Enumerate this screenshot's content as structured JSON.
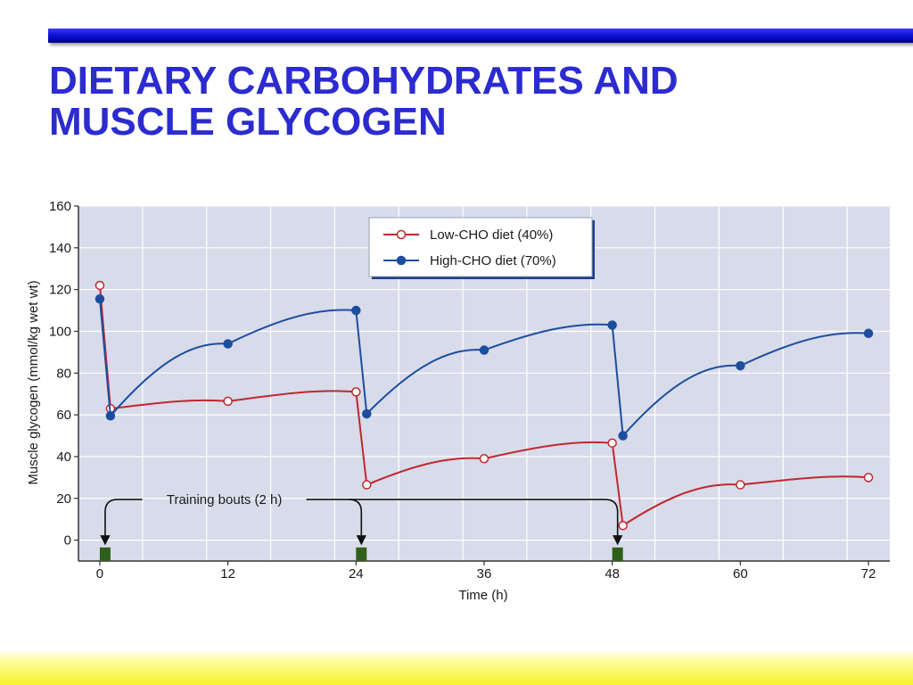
{
  "slide": {
    "title_line1": "DIETARY CARBOHYDRATES AND",
    "title_line2": "MUSCLE GLYCOGEN",
    "title_color": "#2b2bd0",
    "bar_color": "#1010d8",
    "band_color": "#f6f22a"
  },
  "chart_data": {
    "type": "line",
    "xlabel": "Time (h)",
    "ylabel": "Muscle glycogen (mmol/kg wet wt)",
    "xlim": [
      -2,
      74
    ],
    "ylim": [
      -10,
      160
    ],
    "xticks": [
      0,
      12,
      24,
      36,
      48,
      60,
      72
    ],
    "yticks": [
      0,
      20,
      40,
      60,
      80,
      100,
      120,
      140,
      160
    ],
    "grid": true,
    "background_color": "#d8dbea",
    "legend_position": "top-center",
    "series": [
      {
        "name": "Low-CHO diet (40%)",
        "color": "#c0282d",
        "marker": "open-circle",
        "points": [
          [
            0,
            122
          ],
          [
            1,
            63
          ],
          [
            12,
            66.5
          ],
          [
            24,
            71
          ],
          [
            25,
            26.5
          ],
          [
            36,
            39
          ],
          [
            48,
            46.5
          ],
          [
            49,
            7
          ],
          [
            60,
            26.5
          ],
          [
            72,
            30
          ]
        ]
      },
      {
        "name": "High-CHO diet (70%)",
        "color": "#1c4e9e",
        "marker": "filled-circle",
        "points": [
          [
            0,
            115.5
          ],
          [
            1,
            59.5
          ],
          [
            12,
            94
          ],
          [
            24,
            110
          ],
          [
            25,
            60.5
          ],
          [
            36,
            91
          ],
          [
            48,
            103
          ],
          [
            49,
            50
          ],
          [
            60,
            83.5
          ],
          [
            72,
            99
          ]
        ]
      }
    ],
    "annotation": {
      "text": "Training bouts (2 h)",
      "bouts": [
        {
          "start": 0,
          "end": 1
        },
        {
          "start": 24,
          "end": 25
        },
        {
          "start": 48,
          "end": 49
        }
      ],
      "bout_color": "#2f5f1c"
    }
  }
}
